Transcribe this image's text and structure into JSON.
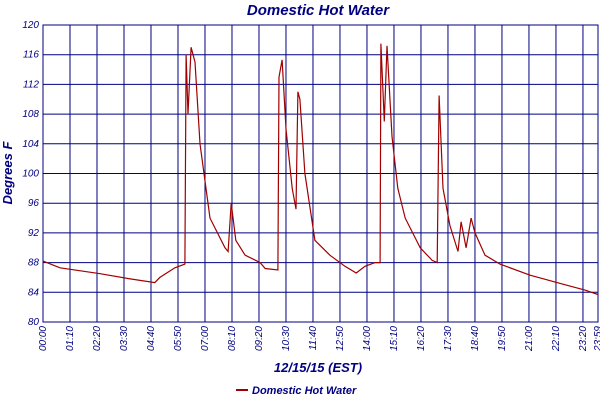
{
  "chart_data": {
    "type": "line",
    "title": "Domestic Hot Water",
    "xlabel": "12/15/15 (EST)",
    "ylabel": "Degrees F",
    "x": [
      0,
      44,
      148,
      226,
      290,
      303,
      342,
      368,
      371,
      376,
      384,
      394,
      407,
      433,
      472,
      480,
      488,
      500,
      524,
      563,
      576,
      609,
      612,
      620,
      630,
      646,
      656,
      661,
      666,
      679,
      705,
      744,
      783,
      812,
      835,
      861,
      874,
      876,
      885,
      892,
      905,
      920,
      939,
      978,
      1009,
      1022,
      1027,
      1037,
      1055,
      1076,
      1084,
      1097,
      1110,
      1120,
      1146,
      1185,
      1263,
      1341,
      1405,
      1439
    ],
    "series": [
      {
        "name": "Domestic Hot Water",
        "color": "#a00000",
        "values": [
          88.2,
          87.3,
          86.5,
          85.8,
          85.3,
          86,
          87.3,
          87.8,
          116,
          108,
          117,
          115,
          104,
          94,
          90,
          89.5,
          96,
          91,
          89,
          88,
          87.2,
          87,
          113,
          115.3,
          106,
          98,
          95.2,
          111,
          110,
          100,
          91,
          89,
          87.5,
          86.6,
          87.5,
          88,
          88,
          117.5,
          107,
          117.2,
          105,
          98,
          94,
          90,
          88.3,
          88,
          110.5,
          98,
          93,
          89.5,
          93.5,
          90,
          94,
          92,
          89,
          87.8,
          86.3,
          85.2,
          84.3,
          83.7
        ]
      }
    ],
    "xlim": [
      0,
      1439
    ],
    "xticks": [
      {
        "value": 0,
        "label": "00:00"
      },
      {
        "value": 70,
        "label": "01:10"
      },
      {
        "value": 140,
        "label": "02:20"
      },
      {
        "value": 210,
        "label": "03:30"
      },
      {
        "value": 280,
        "label": "04:40"
      },
      {
        "value": 350,
        "label": "05:50"
      },
      {
        "value": 420,
        "label": "07:00"
      },
      {
        "value": 490,
        "label": "08:10"
      },
      {
        "value": 560,
        "label": "09:20"
      },
      {
        "value": 630,
        "label": "10:30"
      },
      {
        "value": 700,
        "label": "11:40"
      },
      {
        "value": 770,
        "label": "12:50"
      },
      {
        "value": 840,
        "label": "14:00"
      },
      {
        "value": 910,
        "label": "15:10"
      },
      {
        "value": 980,
        "label": "16:20"
      },
      {
        "value": 1050,
        "label": "17:30"
      },
      {
        "value": 1120,
        "label": "18:40"
      },
      {
        "value": 1190,
        "label": "19:50"
      },
      {
        "value": 1260,
        "label": "21:00"
      },
      {
        "value": 1330,
        "label": "22:10"
      },
      {
        "value": 1400,
        "label": "23:20"
      },
      {
        "value": 1439,
        "label": "23:59"
      }
    ],
    "ylim": [
      80,
      120
    ],
    "yticks": [
      80,
      84,
      88,
      92,
      96,
      100,
      104,
      108,
      112,
      116,
      120
    ],
    "grid": true,
    "legend": "bottom"
  }
}
